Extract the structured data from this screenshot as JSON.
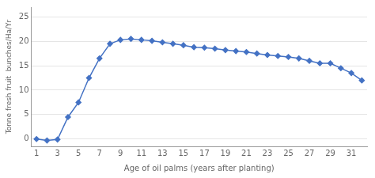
{
  "chart_data": {
    "type": "line",
    "x": [
      1,
      2,
      3,
      4,
      5,
      6,
      7,
      8,
      9,
      10,
      11,
      12,
      13,
      14,
      15,
      16,
      17,
      18,
      19,
      20,
      21,
      22,
      23,
      24,
      25,
      26,
      27,
      28,
      29,
      30,
      31,
      32
    ],
    "values": [
      0,
      -0.3,
      -0.1,
      4.5,
      7.5,
      12.5,
      16.5,
      19.5,
      20.3,
      20.5,
      20.3,
      20.1,
      19.8,
      19.5,
      19.2,
      18.8,
      18.7,
      18.5,
      18.2,
      18.0,
      17.8,
      17.5,
      17.2,
      17.0,
      16.8,
      16.5,
      16.0,
      15.5,
      15.5,
      14.5,
      13.5,
      12.0
    ],
    "xlabel": "Age of oil palms (years after planting)",
    "ylabel": "Tonne fresh fruit  bunches/Ha/Yr",
    "xlim": [
      0.5,
      32.5
    ],
    "xticks": [
      1,
      3,
      5,
      7,
      9,
      11,
      13,
      15,
      17,
      19,
      21,
      23,
      25,
      27,
      29,
      31
    ],
    "ylim": [
      -1.5,
      27
    ],
    "yticks": [
      0,
      5,
      10,
      15,
      20,
      25
    ],
    "color": "#4472C4",
    "marker": "diamond",
    "grid": "y"
  }
}
